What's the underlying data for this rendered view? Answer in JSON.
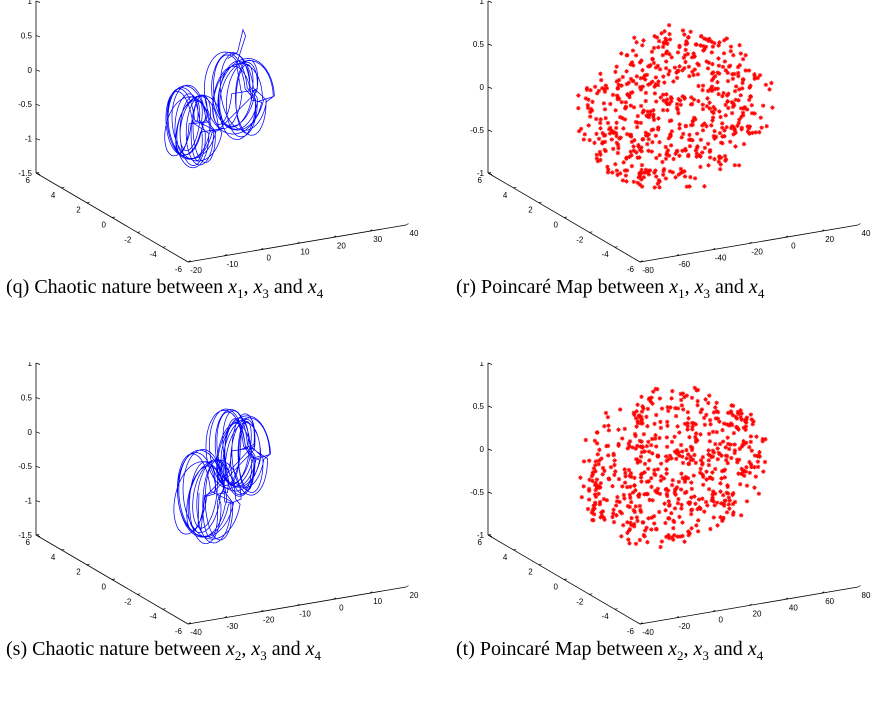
{
  "chart_data": [
    {
      "id": "q",
      "type": "line3d",
      "caption": {
        "label": "(q) Chaotic nature between",
        "v1": "1",
        "v2": "3",
        "v3": "4"
      },
      "color": "#0000ff",
      "axes": {
        "x": {
          "ticks": [
            "-20",
            "-10",
            "0",
            "10",
            "20",
            "30",
            "40"
          ],
          "range": [
            -20,
            40
          ]
        },
        "y": {
          "ticks": [
            "-6",
            "-4",
            "-2",
            "0",
            "2",
            "4",
            "6"
          ],
          "range": [
            -6,
            6
          ]
        },
        "z": {
          "ticks": [
            "-1.5",
            "-1",
            "-0.5",
            "0",
            "0.5",
            "1"
          ],
          "range": [
            -1.5,
            1
          ]
        }
      },
      "lobes": [
        {
          "center": [
            0,
            0.5,
            -0.3
          ],
          "rx": 5,
          "rz": 0.5,
          "loops": 14
        },
        {
          "center": [
            16,
            -0.5,
            -0.1
          ],
          "rx": 6,
          "rz": 0.55,
          "loops": 12
        }
      ],
      "tail": [
        [
          16,
          -0.5,
          0.35
        ],
        [
          22,
          -1.5,
          0.6
        ],
        [
          30,
          -4,
          0.35
        ],
        [
          32,
          -5,
          -0.1
        ],
        [
          30,
          -5.2,
          -0.2
        ]
      ]
    },
    {
      "id": "r",
      "type": "scatter3d",
      "caption": {
        "label": "(r) Poincaré Map between",
        "v1": "1",
        "v2": "3",
        "v3": "4"
      },
      "color": "#ff0000",
      "marker": "*",
      "axes": {
        "x": {
          "ticks": [
            "-80",
            "-60",
            "-40",
            "-20",
            "0",
            "20",
            "40"
          ],
          "range": [
            -80,
            40
          ]
        },
        "y": {
          "ticks": [
            "-6",
            "-4",
            "-2",
            "0",
            "2",
            "4",
            "6"
          ],
          "range": [
            -6,
            6
          ]
        },
        "z": {
          "ticks": [
            "-1",
            "-0.5",
            "0",
            "0.5",
            "1"
          ],
          "range": [
            -1,
            1
          ]
        }
      },
      "cloud": {
        "xRange": [
          -70,
          30
        ],
        "zRange": [
          -0.85,
          0.95
        ],
        "count": 620
      }
    },
    {
      "id": "s",
      "type": "line3d",
      "caption": {
        "label": "(s) Chaotic nature between",
        "v1": "2",
        "v2": "3",
        "v3": "4"
      },
      "color": "#0000ff",
      "axes": {
        "x": {
          "ticks": [
            "-40",
            "-30",
            "-20",
            "-10",
            "0",
            "10",
            "20"
          ],
          "range": [
            -40,
            20
          ]
        },
        "y": {
          "ticks": [
            "-6",
            "-4",
            "-2",
            "0",
            "2",
            "4",
            "6"
          ],
          "range": [
            -6,
            6
          ]
        },
        "z": {
          "ticks": [
            "-1.5",
            "-1",
            "-0.5",
            "0",
            "0.5",
            "1"
          ],
          "range": [
            -1.5,
            1
          ]
        }
      },
      "lobes": [
        {
          "center": [
            -18,
            1,
            -0.4
          ],
          "rx": 6,
          "rz": 0.6,
          "loops": 12
        },
        {
          "center": [
            -2,
            -1,
            -0.1
          ],
          "rx": 5,
          "rz": 0.55,
          "loops": 16
        }
      ],
      "tail": [
        [
          -18,
          1,
          -0.4
        ],
        [
          -26,
          3,
          -0.6
        ],
        [
          -32,
          4.5,
          -0.3
        ],
        [
          -30,
          4,
          0.1
        ]
      ]
    },
    {
      "id": "t",
      "type": "scatter3d",
      "caption": {
        "label": "(t) Poincaré Map between",
        "v1": "2",
        "v2": "3",
        "v3": "4"
      },
      "color": "#ff0000",
      "marker": "*",
      "axes": {
        "x": {
          "ticks": [
            "-40",
            "-20",
            "0",
            "20",
            "40",
            "60",
            "80"
          ],
          "range": [
            -40,
            80
          ]
        },
        "y": {
          "ticks": [
            "-6",
            "-4",
            "-2",
            "0",
            "2",
            "4",
            "6"
          ],
          "range": [
            -6,
            6
          ]
        },
        "z": {
          "ticks": [
            "-1",
            "-0.5",
            "0",
            "0.5",
            "1"
          ],
          "range": [
            -1,
            1
          ]
        }
      },
      "cloud": {
        "xRange": [
          -30,
          70
        ],
        "zRange": [
          -0.8,
          0.95
        ],
        "count": 620
      }
    }
  ]
}
